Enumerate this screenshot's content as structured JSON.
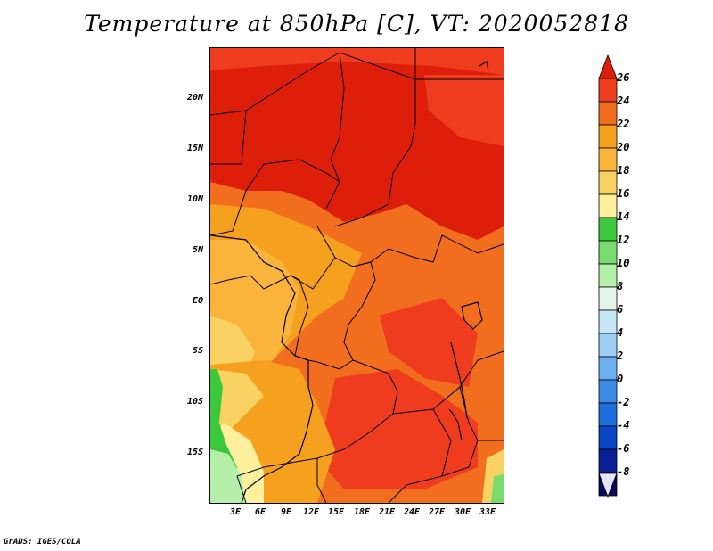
{
  "title": "Temperature at 850hPa [C], VT: 2020052818",
  "credit": "GrADS: IGES/COLA",
  "lat_labels": [
    "20N",
    "15N",
    "10N",
    "5N",
    "EQ",
    "5S",
    "10S",
    "15S"
  ],
  "lon_labels": [
    "3E",
    "6E",
    "9E",
    "12E",
    "15E",
    "18E",
    "21E",
    "24E",
    "27E",
    "30E",
    "33E"
  ],
  "colorbar": {
    "labels": [
      "26",
      "24",
      "22",
      "20",
      "18",
      "16",
      "14",
      "12",
      "10",
      "8",
      "6",
      "4",
      "2",
      "0",
      "-2",
      "-4",
      "-6",
      "-8"
    ],
    "colors": [
      "#dc1e0a",
      "#f03c1e",
      "#f06e1e",
      "#f5a01e",
      "#fab43c",
      "#fad264",
      "#fff0a0",
      "#3cc83c",
      "#78dc6e",
      "#b4f0aa",
      "#e6f5e6",
      "#c8e6fa",
      "#9bcdf5",
      "#6eaff0",
      "#3c8ce6",
      "#1e6edc",
      "#0a46c8",
      "#0a1e96",
      "#0a0a5a",
      "#e6e6fa"
    ]
  }
}
